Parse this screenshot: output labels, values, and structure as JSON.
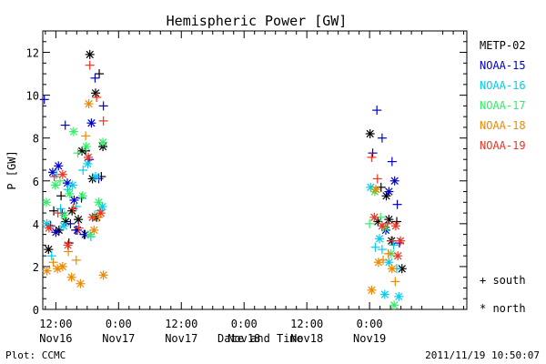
{
  "chart_data": {
    "type": "scatter",
    "title": "Hemispheric Power [GW]",
    "xlabel": "Date and Time",
    "ylabel": "P [GW]",
    "x_unit": "hours after 2011-11-16 00:00 UT",
    "xlim": [
      9.5,
      90.6
    ],
    "ylim": [
      0,
      13
    ],
    "x_ticks": [
      {
        "x": 12,
        "line1": "12:00",
        "line2": "Nov16"
      },
      {
        "x": 24,
        "line1": "0:00",
        "line2": "Nov17"
      },
      {
        "x": 36,
        "line1": "12:00",
        "line2": "Nov17"
      },
      {
        "x": 48,
        "line1": "0:00",
        "line2": "Nov18"
      },
      {
        "x": 60,
        "line1": "12:00",
        "line2": "Nov18"
      },
      {
        "x": 72,
        "line1": "0:00",
        "line2": "Nov19"
      }
    ],
    "y_ticks": [
      0,
      2,
      4,
      6,
      8,
      10,
      12
    ],
    "marker_legend": {
      "south": "+ south",
      "north": "* north"
    },
    "series": [
      {
        "name": "METP-02",
        "color": "#000000",
        "points": [
          {
            "x": 10.6,
            "y": 2.8,
            "h": "north"
          },
          {
            "x": 11.6,
            "y": 4.6,
            "h": "south"
          },
          {
            "x": 12.6,
            "y": 3.7,
            "h": "north"
          },
          {
            "x": 13.0,
            "y": 5.3,
            "h": "south"
          },
          {
            "x": 13.9,
            "y": 4.1,
            "h": "north"
          },
          {
            "x": 14.5,
            "y": 3.1,
            "h": "south"
          },
          {
            "x": 15.1,
            "y": 4.6,
            "h": "north"
          },
          {
            "x": 15.8,
            "y": 3.7,
            "h": "south"
          },
          {
            "x": 16.3,
            "y": 4.2,
            "h": "north"
          },
          {
            "x": 17.0,
            "y": 7.4,
            "h": "north"
          },
          {
            "x": 17.4,
            "y": 3.5,
            "h": "south"
          },
          {
            "x": 17.7,
            "y": 7.4,
            "h": "south"
          },
          {
            "x": 18.5,
            "y": 11.9,
            "h": "north"
          },
          {
            "x": 19.0,
            "y": 6.1,
            "h": "north"
          },
          {
            "x": 19.6,
            "y": 10.1,
            "h": "north"
          },
          {
            "x": 19.8,
            "y": 4.3,
            "h": "north"
          },
          {
            "x": 20.3,
            "y": 11.0,
            "h": "south"
          },
          {
            "x": 20.7,
            "y": 6.2,
            "h": "south"
          },
          {
            "x": 21.0,
            "y": 7.6,
            "h": "north"
          },
          {
            "x": 72.1,
            "y": 8.2,
            "h": "north"
          },
          {
            "x": 73.6,
            "y": 4.1,
            "h": "north"
          },
          {
            "x": 74.2,
            "y": 5.7,
            "h": "south"
          },
          {
            "x": 75.2,
            "y": 5.3,
            "h": "north"
          },
          {
            "x": 75.7,
            "y": 4.2,
            "h": "north"
          },
          {
            "x": 76.2,
            "y": 3.2,
            "h": "north"
          },
          {
            "x": 77.2,
            "y": 4.1,
            "h": "south"
          },
          {
            "x": 78.2,
            "y": 1.9,
            "h": "north"
          }
        ]
      },
      {
        "name": "NOAA-15",
        "color": "#0000cc",
        "points": [
          {
            "x": 9.8,
            "y": 9.8,
            "h": "south"
          },
          {
            "x": 11.0,
            "y": 3.9,
            "h": "south"
          },
          {
            "x": 11.4,
            "y": 6.4,
            "h": "north"
          },
          {
            "x": 12.0,
            "y": 3.6,
            "h": "north"
          },
          {
            "x": 12.5,
            "y": 6.7,
            "h": "north"
          },
          {
            "x": 13.2,
            "y": 4.5,
            "h": "south"
          },
          {
            "x": 13.8,
            "y": 8.6,
            "h": "south"
          },
          {
            "x": 14.2,
            "y": 5.9,
            "h": "north"
          },
          {
            "x": 14.8,
            "y": 4.0,
            "h": "south"
          },
          {
            "x": 15.5,
            "y": 5.1,
            "h": "north"
          },
          {
            "x": 16.1,
            "y": 3.7,
            "h": "north"
          },
          {
            "x": 16.9,
            "y": 5.2,
            "h": "south"
          },
          {
            "x": 17.6,
            "y": 3.5,
            "h": "north"
          },
          {
            "x": 18.4,
            "y": 7.0,
            "h": "south"
          },
          {
            "x": 18.8,
            "y": 8.7,
            "h": "north"
          },
          {
            "x": 19.5,
            "y": 10.8,
            "h": "south"
          },
          {
            "x": 20.2,
            "y": 6.1,
            "h": "south"
          },
          {
            "x": 21.1,
            "y": 9.5,
            "h": "south"
          },
          {
            "x": 72.6,
            "y": 7.3,
            "h": "south"
          },
          {
            "x": 73.4,
            "y": 9.3,
            "h": "south"
          },
          {
            "x": 74.4,
            "y": 8.0,
            "h": "south"
          },
          {
            "x": 75.1,
            "y": 3.7,
            "h": "north"
          },
          {
            "x": 75.7,
            "y": 5.5,
            "h": "north"
          },
          {
            "x": 76.3,
            "y": 6.9,
            "h": "south"
          },
          {
            "x": 76.8,
            "y": 6.0,
            "h": "north"
          },
          {
            "x": 77.3,
            "y": 4.9,
            "h": "south"
          },
          {
            "x": 77.7,
            "y": 3.1,
            "h": "south"
          }
        ]
      },
      {
        "name": "NOAA-16",
        "color": "#00ccee",
        "points": [
          {
            "x": 10.3,
            "y": 4.0,
            "h": "north"
          },
          {
            "x": 11.2,
            "y": 2.5,
            "h": "south"
          },
          {
            "x": 12.1,
            "y": 6.3,
            "h": "south"
          },
          {
            "x": 12.9,
            "y": 4.7,
            "h": "south"
          },
          {
            "x": 13.5,
            "y": 3.9,
            "h": "north"
          },
          {
            "x": 14.3,
            "y": 5.6,
            "h": "south"
          },
          {
            "x": 15.2,
            "y": 5.8,
            "h": "north"
          },
          {
            "x": 15.9,
            "y": 4.8,
            "h": "south"
          },
          {
            "x": 17.2,
            "y": 6.5,
            "h": "south"
          },
          {
            "x": 18.1,
            "y": 6.8,
            "h": "north"
          },
          {
            "x": 18.7,
            "y": 3.4,
            "h": "south"
          },
          {
            "x": 19.6,
            "y": 6.2,
            "h": "north"
          },
          {
            "x": 20.4,
            "y": 4.6,
            "h": "south"
          },
          {
            "x": 20.9,
            "y": 4.8,
            "h": "north"
          },
          {
            "x": 72.2,
            "y": 5.7,
            "h": "north"
          },
          {
            "x": 73.1,
            "y": 2.9,
            "h": "south"
          },
          {
            "x": 73.9,
            "y": 3.3,
            "h": "north"
          },
          {
            "x": 74.4,
            "y": 2.8,
            "h": "south"
          },
          {
            "x": 74.9,
            "y": 0.7,
            "h": "north"
          },
          {
            "x": 75.7,
            "y": 2.2,
            "h": "north"
          },
          {
            "x": 76.6,
            "y": 3.0,
            "h": "south"
          },
          {
            "x": 77.2,
            "y": 1.9,
            "h": "south"
          },
          {
            "x": 77.6,
            "y": 0.6,
            "h": "north"
          }
        ]
      },
      {
        "name": "NOAA-17",
        "color": "#33ee66",
        "points": [
          {
            "x": 10.2,
            "y": 5.0,
            "h": "north"
          },
          {
            "x": 11.9,
            "y": 5.8,
            "h": "north"
          },
          {
            "x": 12.8,
            "y": 6.0,
            "h": "south"
          },
          {
            "x": 13.6,
            "y": 4.4,
            "h": "north"
          },
          {
            "x": 14.6,
            "y": 5.4,
            "h": "north"
          },
          {
            "x": 15.4,
            "y": 8.3,
            "h": "north"
          },
          {
            "x": 16.2,
            "y": 7.3,
            "h": "south"
          },
          {
            "x": 17.1,
            "y": 5.3,
            "h": "north"
          },
          {
            "x": 17.8,
            "y": 7.6,
            "h": "north"
          },
          {
            "x": 18.6,
            "y": 3.5,
            "h": "north"
          },
          {
            "x": 19.4,
            "y": 4.4,
            "h": "south"
          },
          {
            "x": 20.2,
            "y": 5.0,
            "h": "north"
          },
          {
            "x": 21.0,
            "y": 7.8,
            "h": "north"
          },
          {
            "x": 72.0,
            "y": 4.0,
            "h": "south"
          },
          {
            "x": 73.0,
            "y": 5.5,
            "h": "north"
          },
          {
            "x": 74.1,
            "y": 4.3,
            "h": "south"
          },
          {
            "x": 75.0,
            "y": 3.8,
            "h": "north"
          },
          {
            "x": 76.1,
            "y": 2.6,
            "h": "north"
          },
          {
            "x": 76.7,
            "y": 0.2,
            "h": "north"
          }
        ]
      },
      {
        "name": "NOAA-18",
        "color": "#ee8800",
        "points": [
          {
            "x": 10.3,
            "y": 1.8,
            "h": "north"
          },
          {
            "x": 11.5,
            "y": 2.2,
            "h": "south"
          },
          {
            "x": 12.3,
            "y": 1.9,
            "h": "north"
          },
          {
            "x": 13.3,
            "y": 2.0,
            "h": "north"
          },
          {
            "x": 14.4,
            "y": 2.7,
            "h": "south"
          },
          {
            "x": 15.0,
            "y": 1.5,
            "h": "north"
          },
          {
            "x": 15.9,
            "y": 2.3,
            "h": "south"
          },
          {
            "x": 16.7,
            "y": 1.2,
            "h": "north"
          },
          {
            "x": 17.7,
            "y": 8.1,
            "h": "south"
          },
          {
            "x": 18.3,
            "y": 9.6,
            "h": "north"
          },
          {
            "x": 19.3,
            "y": 3.7,
            "h": "north"
          },
          {
            "x": 20.2,
            "y": 4.3,
            "h": "south"
          },
          {
            "x": 21.1,
            "y": 1.6,
            "h": "north"
          },
          {
            "x": 72.4,
            "y": 0.9,
            "h": "north"
          },
          {
            "x": 73.2,
            "y": 5.6,
            "h": "north"
          },
          {
            "x": 73.7,
            "y": 2.2,
            "h": "north"
          },
          {
            "x": 74.6,
            "y": 2.3,
            "h": "south"
          },
          {
            "x": 75.6,
            "y": 2.6,
            "h": "south"
          },
          {
            "x": 76.3,
            "y": 1.9,
            "h": "north"
          },
          {
            "x": 76.9,
            "y": 1.3,
            "h": "south"
          }
        ]
      },
      {
        "name": "NOAA-19",
        "color": "#ee3322",
        "points": [
          {
            "x": 10.7,
            "y": 3.8,
            "h": "north"
          },
          {
            "x": 11.7,
            "y": 6.2,
            "h": "south"
          },
          {
            "x": 12.4,
            "y": 4.5,
            "h": "south"
          },
          {
            "x": 13.3,
            "y": 6.3,
            "h": "north"
          },
          {
            "x": 14.3,
            "y": 3.0,
            "h": "north"
          },
          {
            "x": 15.3,
            "y": 4.7,
            "h": "south"
          },
          {
            "x": 16.4,
            "y": 3.8,
            "h": "south"
          },
          {
            "x": 18.2,
            "y": 7.1,
            "h": "north"
          },
          {
            "x": 18.5,
            "y": 11.4,
            "h": "south"
          },
          {
            "x": 19.0,
            "y": 4.3,
            "h": "north"
          },
          {
            "x": 19.8,
            "y": 9.9,
            "h": "south"
          },
          {
            "x": 20.6,
            "y": 4.5,
            "h": "north"
          },
          {
            "x": 21.1,
            "y": 8.8,
            "h": "south"
          },
          {
            "x": 72.4,
            "y": 7.1,
            "h": "south"
          },
          {
            "x": 72.9,
            "y": 4.3,
            "h": "north"
          },
          {
            "x": 73.5,
            "y": 6.1,
            "h": "south"
          },
          {
            "x": 74.4,
            "y": 3.9,
            "h": "north"
          },
          {
            "x": 75.4,
            "y": 4.0,
            "h": "south"
          },
          {
            "x": 76.4,
            "y": 3.2,
            "h": "south"
          },
          {
            "x": 77.0,
            "y": 3.9,
            "h": "north"
          },
          {
            "x": 77.4,
            "y": 2.5,
            "h": "north"
          },
          {
            "x": 77.9,
            "y": 3.2,
            "h": "north"
          }
        ]
      }
    ]
  },
  "footer": {
    "left": "Plot: CCMC",
    "right": "2011/11/19 10:50:07"
  }
}
